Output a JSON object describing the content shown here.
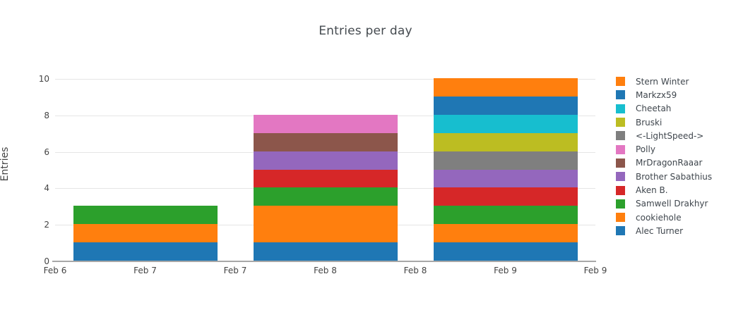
{
  "chart_data": {
    "type": "bar",
    "stacked": true,
    "title": "Entries per day",
    "xlabel": "",
    "ylabel": "Entries",
    "ylim": [
      0,
      10
    ],
    "yticks": [
      0,
      2,
      4,
      6,
      8,
      10
    ],
    "x_tick_labels": [
      "Feb 6",
      "Feb 7",
      "Feb 7",
      "Feb 8",
      "Feb 8",
      "Feb 9",
      "Feb 9"
    ],
    "categories": [
      "Feb 7",
      "Feb 8",
      "Feb 9"
    ],
    "bar_totals": [
      3,
      8,
      10
    ],
    "grid": "horizontal",
    "legend_position": "right",
    "series": [
      {
        "name": "Alec Turner",
        "color": "#1f77b4",
        "values": [
          1,
          1,
          1
        ]
      },
      {
        "name": "cookiehole",
        "color": "#ff7f0e",
        "values": [
          1,
          2,
          1
        ]
      },
      {
        "name": "Samwell Drakhyr",
        "color": "#2ca02c",
        "values": [
          1,
          1,
          1
        ]
      },
      {
        "name": "Aken B.",
        "color": "#d62728",
        "values": [
          0,
          1,
          1
        ]
      },
      {
        "name": "Brother Sabathius",
        "color": "#9467bd",
        "values": [
          0,
          1,
          1
        ]
      },
      {
        "name": "MrDragonRaaar",
        "color": "#8c564b",
        "values": [
          0,
          1,
          0
        ]
      },
      {
        "name": "Polly",
        "color": "#e377c2",
        "values": [
          0,
          1,
          0
        ]
      },
      {
        "name": "<-LightSpeed->",
        "color": "#7f7f7f",
        "values": [
          0,
          0,
          1
        ]
      },
      {
        "name": "Bruski",
        "color": "#bcbd22",
        "values": [
          0,
          0,
          1
        ]
      },
      {
        "name": "Cheetah",
        "color": "#17becf",
        "values": [
          0,
          0,
          1
        ]
      },
      {
        "name": "Markzx59",
        "color": "#1f77b4",
        "values": [
          0,
          0,
          1
        ]
      },
      {
        "name": "Stern Winter",
        "color": "#ff7f0e",
        "values": [
          0,
          0,
          1
        ]
      }
    ],
    "legend_order_top_to_bottom": [
      "Stern Winter",
      "Markzx59",
      "Cheetah",
      "Bruski",
      "<-LightSpeed->",
      "Polly",
      "MrDragonRaaar",
      "Brother Sabathius",
      "Aken B.",
      "Samwell Drakhyr",
      "cookiehole",
      "Alec Turner"
    ]
  }
}
